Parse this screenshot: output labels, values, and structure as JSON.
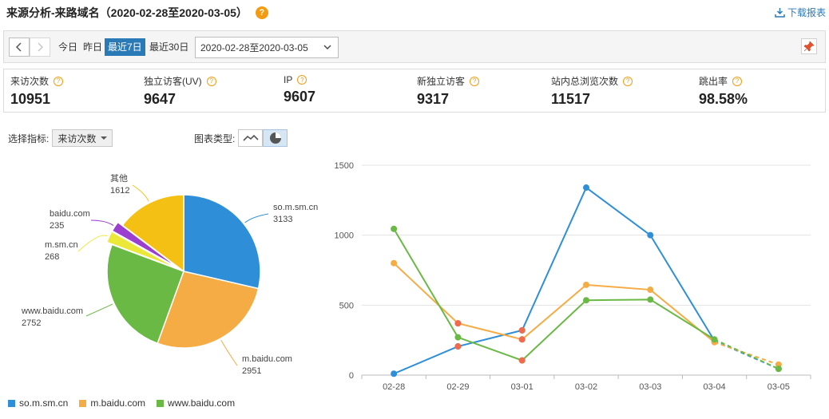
{
  "header": {
    "title": "来源分析-来路域名（2020-02-28至2020-03-05）",
    "help_icon": "?",
    "download_label": "下载报表"
  },
  "toolbar": {
    "ranges": [
      "今日",
      "昨日",
      "最近7日",
      "最近30日"
    ],
    "active_range": "最近7日",
    "date_range_value": "2020-02-28至2020-03-05"
  },
  "metrics": [
    {
      "label": "来访次数",
      "value": "10951"
    },
    {
      "label": "独立访客(UV)",
      "value": "9647"
    },
    {
      "label": "IP",
      "value": "9607"
    },
    {
      "label": "新独立访客",
      "value": "9317"
    },
    {
      "label": "站内总浏览次数",
      "value": "11517"
    },
    {
      "label": "跳出率",
      "value": "98.58%"
    }
  ],
  "controls": {
    "indicator_label": "选择指标:",
    "indicator_value": "来访次数",
    "chart_type_label": "图表类型:"
  },
  "colors": {
    "blue": "#2e8fd8",
    "orange": "#f5ac45",
    "green": "#6ab945",
    "yellow": "#f5c014",
    "purple": "#9b3fd1",
    "lightyellow": "#ebe83a",
    "red_point": "#ee6b4d",
    "accent": "#2a7ab8"
  },
  "chart_data": [
    {
      "type": "pie",
      "slices": [
        {
          "label": "so.m.sm.cn",
          "value": 3133,
          "color": "#2e8fd8"
        },
        {
          "label": "m.baidu.com",
          "value": 2951,
          "color": "#f5ac45"
        },
        {
          "label": "www.baidu.com",
          "value": 2752,
          "color": "#6ab945"
        },
        {
          "label": "m.sm.cn",
          "value": 268,
          "color": "#ebe83a"
        },
        {
          "label": "baidu.com",
          "value": 235,
          "color": "#9b3fd1"
        },
        {
          "label": "其他",
          "value": 1612,
          "color": "#f5c014"
        }
      ]
    },
    {
      "type": "line",
      "categories": [
        "02-28",
        "02-29",
        "03-01",
        "03-02",
        "03-03",
        "03-04",
        "03-05"
      ],
      "ylim": [
        0,
        1500
      ],
      "yticks": [
        0,
        500,
        1000,
        1500
      ],
      "grid": true,
      "series": [
        {
          "name": "so.m.sm.cn",
          "color": "#2e8fd8",
          "values": [
            10,
            205,
            320,
            1340,
            1000,
            245,
            45
          ],
          "dashed_last_segment": true
        },
        {
          "name": "m.baidu.com",
          "color": "#f5ac45",
          "values": [
            800,
            370,
            255,
            645,
            610,
            235,
            75
          ],
          "dashed_last_segment": true
        },
        {
          "name": "www.baidu.com",
          "color": "#6ab945",
          "values": [
            1045,
            270,
            105,
            535,
            540,
            255,
            45
          ],
          "dashed_last_segment": true
        }
      ],
      "highlight_color": "#ee6b4d"
    }
  ]
}
